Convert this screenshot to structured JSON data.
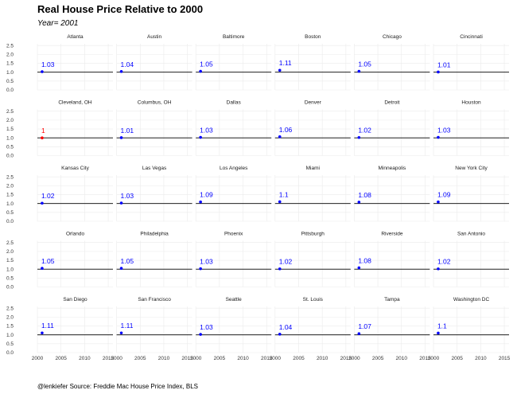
{
  "title": "Real House Price Relative to 2000",
  "subtitle": "Year= 2001",
  "caption": "@lenkiefer Source: Freddie Mac House Price Index, BLS",
  "colors": {
    "above": "#0000ff",
    "below": "#ff0000",
    "baseline": "#000000",
    "grid": "#ebebeb"
  },
  "chart_data": {
    "type": "scatter",
    "facet_by": "city",
    "year": 2001,
    "reference_line": 1.0,
    "xlim": [
      2000,
      2016
    ],
    "ylim": [
      0,
      2.6
    ],
    "xticks": [
      2000,
      2005,
      2010,
      2015
    ],
    "yticks": [
      0.0,
      0.5,
      1.0,
      1.5,
      2.0,
      2.5
    ],
    "ytick_labels": [
      "0.0",
      "0.5",
      "1.0",
      "1.5",
      "2.0",
      "2.5"
    ],
    "grid": true,
    "panels": [
      {
        "name": "Atlanta",
        "value": 1.03,
        "label": "1.03"
      },
      {
        "name": "Austin",
        "value": 1.04,
        "label": "1.04"
      },
      {
        "name": "Baltimore",
        "value": 1.05,
        "label": "1.05"
      },
      {
        "name": "Boston",
        "value": 1.11,
        "label": "1.11"
      },
      {
        "name": "Chicago",
        "value": 1.05,
        "label": "1.05"
      },
      {
        "name": "Cincinnati",
        "value": 1.01,
        "label": "1.01"
      },
      {
        "name": "Cleveland, OH",
        "value": 1.0,
        "label": "1"
      },
      {
        "name": "Columbus, OH",
        "value": 1.01,
        "label": "1.01"
      },
      {
        "name": "Dallas",
        "value": 1.03,
        "label": "1.03"
      },
      {
        "name": "Denver",
        "value": 1.06,
        "label": "1.06"
      },
      {
        "name": "Detroit",
        "value": 1.02,
        "label": "1.02"
      },
      {
        "name": "Houston",
        "value": 1.03,
        "label": "1.03"
      },
      {
        "name": "Kansas City",
        "value": 1.02,
        "label": "1.02"
      },
      {
        "name": "Las Vegas",
        "value": 1.03,
        "label": "1.03"
      },
      {
        "name": "Los Angeles",
        "value": 1.09,
        "label": "1.09"
      },
      {
        "name": "Miami",
        "value": 1.1,
        "label": "1.1"
      },
      {
        "name": "Minneapolis",
        "value": 1.08,
        "label": "1.08"
      },
      {
        "name": "New York City",
        "value": 1.09,
        "label": "1.09"
      },
      {
        "name": "Orlando",
        "value": 1.05,
        "label": "1.05"
      },
      {
        "name": "Philadelphia",
        "value": 1.05,
        "label": "1.05"
      },
      {
        "name": "Phoenix",
        "value": 1.03,
        "label": "1.03"
      },
      {
        "name": "Pittsburgh",
        "value": 1.02,
        "label": "1.02"
      },
      {
        "name": "Riverside",
        "value": 1.08,
        "label": "1.08"
      },
      {
        "name": "San Antonio",
        "value": 1.02,
        "label": "1.02"
      },
      {
        "name": "San Diego",
        "value": 1.11,
        "label": "1.11"
      },
      {
        "name": "San Francisco",
        "value": 1.11,
        "label": "1.11"
      },
      {
        "name": "Seattle",
        "value": 1.03,
        "label": "1.03"
      },
      {
        "name": "St. Louis",
        "value": 1.04,
        "label": "1.04"
      },
      {
        "name": "Tampa",
        "value": 1.07,
        "label": "1.07"
      },
      {
        "name": "Washington DC",
        "value": 1.1,
        "label": "1.1"
      }
    ]
  }
}
